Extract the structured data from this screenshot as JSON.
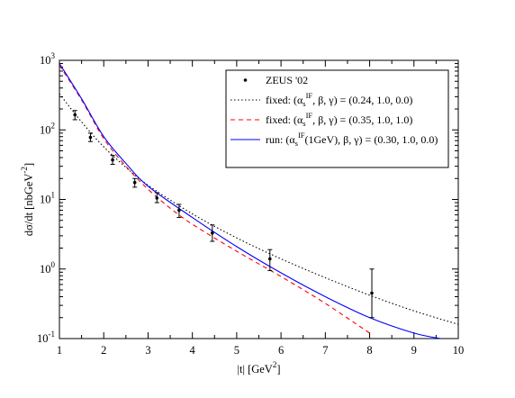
{
  "chart_data": {
    "type": "line",
    "title": "",
    "xlabel": "|t|    [GeV",
    "xlabel_sup": "2",
    "xlabel_close": "]",
    "ylabel": "dσ/dt   [nbGeV",
    "ylabel_sup": "-2",
    "ylabel_close": "]",
    "xlim": [
      1,
      10
    ],
    "ylim": [
      0.1,
      1000
    ],
    "yscale": "log",
    "grid": false,
    "legend_position": "top-right",
    "x_ticks": [
      {
        "v": 1,
        "label": "1"
      },
      {
        "v": 2,
        "label": "2"
      },
      {
        "v": 3,
        "label": "3"
      },
      {
        "v": 4,
        "label": "4"
      },
      {
        "v": 5,
        "label": "5"
      },
      {
        "v": 6,
        "label": "6"
      },
      {
        "v": 7,
        "label": "7"
      },
      {
        "v": 8,
        "label": "8"
      },
      {
        "v": 9,
        "label": "9"
      },
      {
        "v": 10,
        "label": "10"
      }
    ],
    "y_ticks": [
      {
        "v": 0.1,
        "base": "10",
        "exp": "-1"
      },
      {
        "v": 1,
        "base": "10",
        "exp": "0"
      },
      {
        "v": 10,
        "base": "10",
        "exp": "1"
      },
      {
        "v": 100,
        "base": "10",
        "exp": "2"
      },
      {
        "v": 1000,
        "base": "10",
        "exp": "3"
      }
    ],
    "data_points": {
      "name": "ZEUS  '02",
      "color": "#000000",
      "points": [
        {
          "x": 1.35,
          "y": 165,
          "lo": 140,
          "hi": 190
        },
        {
          "x": 1.7,
          "y": 78,
          "lo": 68,
          "hi": 90
        },
        {
          "x": 2.2,
          "y": 37,
          "lo": 32,
          "hi": 43
        },
        {
          "x": 2.7,
          "y": 17.5,
          "lo": 15,
          "hi": 20
        },
        {
          "x": 3.2,
          "y": 10.5,
          "lo": 9,
          "hi": 12.5
        },
        {
          "x": 3.7,
          "y": 7,
          "lo": 5.5,
          "hi": 8.5
        },
        {
          "x": 4.45,
          "y": 3.3,
          "lo": 2.5,
          "hi": 4.3
        },
        {
          "x": 5.75,
          "y": 1.4,
          "lo": 0.95,
          "hi": 1.9
        },
        {
          "x": 8.05,
          "y": 0.45,
          "lo": 0.2,
          "hi": 1.0
        }
      ]
    },
    "series": [
      {
        "name": "fixed: (α",
        "sub": "s",
        "sup": "IF",
        "rest": ", β, γ) = (0.24, 1.0, 0.0)",
        "color": "#000000",
        "dash": "1.5,2.5",
        "x": [
          1.0,
          1.5,
          2.0,
          2.5,
          3.0,
          4.0,
          5.0,
          6.0,
          7.0,
          8.0,
          9.0,
          10.0
        ],
        "y": [
          330,
          130,
          57,
          29,
          16,
          6.2,
          2.8,
          1.4,
          0.75,
          0.42,
          0.25,
          0.16
        ]
      },
      {
        "name": "fixed: (α",
        "sub": "s",
        "sup": "IF",
        "rest": ", β, γ) = (0.35, 1.0, 1.0)",
        "color": "#ff0000",
        "dash": "5,4",
        "x": [
          1.0,
          1.5,
          2.0,
          2.5,
          3.0,
          3.5,
          4.0,
          5.0,
          6.0,
          7.0,
          8.0
        ],
        "y": [
          850,
          270,
          75,
          30,
          14,
          7.5,
          4.4,
          1.8,
          0.78,
          0.32,
          0.12
        ]
      },
      {
        "name": "run: (α",
        "sub": "s",
        "sup": "IF",
        "rest": "(1GeV), β, γ) = (0.30, 1.0, 0.0)",
        "color": "#0000ff",
        "dash": "",
        "x": [
          1.0,
          1.5,
          2.0,
          2.5,
          3.0,
          4.0,
          5.0,
          6.0,
          7.0,
          8.0,
          9.0,
          9.6
        ],
        "y": [
          900,
          280,
          80,
          33,
          15.5,
          5.5,
          2.1,
          0.88,
          0.4,
          0.2,
          0.12,
          0.1
        ]
      }
    ]
  }
}
